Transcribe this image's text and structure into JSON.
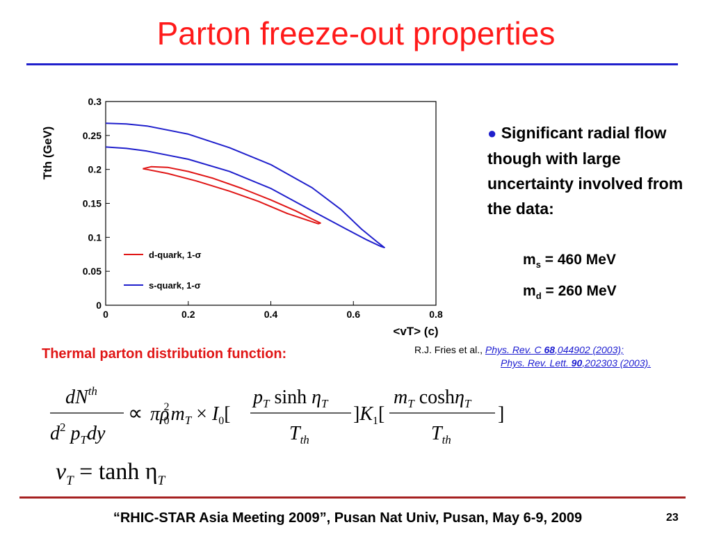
{
  "slide": {
    "title": "Parton freeze-out properties",
    "colors": {
      "title": "#ff1a1a",
      "rule": "#1f1fcc",
      "footer_rule": "#a52020",
      "d_quark": "#e01515",
      "s_quark": "#1f1fcc"
    }
  },
  "bullet": {
    "marker": "●",
    "text": "Significant radial flow though with large uncertainty involved from the data:",
    "mass_s": {
      "symbol": "m",
      "sub": "s",
      "value": "= 460 MeV"
    },
    "mass_d": {
      "symbol": "m",
      "sub": "d",
      "value": "= 260 MeV"
    }
  },
  "thermal_label": "Thermal parton distribution function:",
  "reference": {
    "authors": "R.J. Fries et al.,",
    "ref1_journal": "Phys. Rev. C",
    "ref1_vol": "68",
    "ref1_rest": ",044902 (2003);",
    "ref2_journal": "Phys. Rev. Lett.",
    "ref2_vol": "90",
    "ref2_rest": ",202303 (2003)."
  },
  "equation2": {
    "lhs_var": "v",
    "lhs_sub": "T",
    "rhs": "= tanh η",
    "rhs_sub": "T"
  },
  "footer": {
    "text": "“RHIC-STAR Asia Meeting 2009”, Pusan Nat Univ, Pusan, May 6-9, 2009",
    "page": "23"
  },
  "chart_data": {
    "type": "line",
    "xlabel": "<vT> (c)",
    "ylabel": "Tth (GeV)",
    "xlim": [
      0,
      0.8
    ],
    "ylim": [
      0,
      0.3
    ],
    "x_ticks": [
      "0",
      "0.2",
      "0.4",
      "0.6",
      "0.8"
    ],
    "y_ticks": [
      "0",
      "0.05",
      "0.1",
      "0.15",
      "0.2",
      "0.25",
      "0.3"
    ],
    "grid": false,
    "legend_position": "bottom-left",
    "series": [
      {
        "name": "d-quark, 1-σ",
        "color": "#e01515",
        "closed": true,
        "points": [
          [
            0.09,
            0.201
          ],
          [
            0.11,
            0.204
          ],
          [
            0.15,
            0.203
          ],
          [
            0.2,
            0.197
          ],
          [
            0.26,
            0.187
          ],
          [
            0.33,
            0.172
          ],
          [
            0.4,
            0.155
          ],
          [
            0.46,
            0.139
          ],
          [
            0.5,
            0.127
          ],
          [
            0.52,
            0.121
          ],
          [
            0.515,
            0.12
          ],
          [
            0.49,
            0.125
          ],
          [
            0.44,
            0.135
          ],
          [
            0.37,
            0.153
          ],
          [
            0.3,
            0.168
          ],
          [
            0.22,
            0.183
          ],
          [
            0.15,
            0.194
          ],
          [
            0.1,
            0.2
          ],
          [
            0.09,
            0.201
          ]
        ]
      },
      {
        "name": "s-quark, 1-σ",
        "color": "#1f1fcc",
        "closed": true,
        "points": [
          [
            0.0,
            0.268
          ],
          [
            0.05,
            0.267
          ],
          [
            0.1,
            0.264
          ],
          [
            0.2,
            0.252
          ],
          [
            0.3,
            0.232
          ],
          [
            0.4,
            0.207
          ],
          [
            0.5,
            0.173
          ],
          [
            0.57,
            0.141
          ],
          [
            0.62,
            0.112
          ],
          [
            0.66,
            0.092
          ],
          [
            0.675,
            0.085
          ],
          [
            0.665,
            0.087
          ],
          [
            0.63,
            0.097
          ],
          [
            0.58,
            0.113
          ],
          [
            0.5,
            0.139
          ],
          [
            0.4,
            0.172
          ],
          [
            0.3,
            0.197
          ],
          [
            0.2,
            0.215
          ],
          [
            0.1,
            0.227
          ],
          [
            0.05,
            0.231
          ],
          [
            0.0,
            0.233
          ]
        ]
      }
    ]
  }
}
